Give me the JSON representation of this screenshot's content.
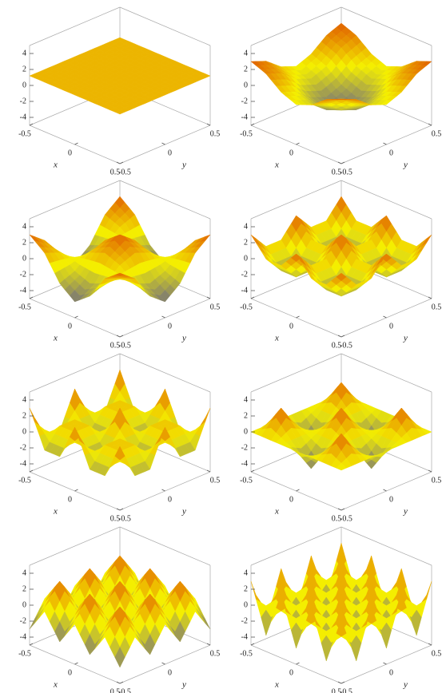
{
  "chart_data": [
    {
      "type": "surface",
      "xlabel": "x",
      "ylabel": "y",
      "x": [
        -0.5,
        -0.3333,
        -0.1667,
        0,
        0.1667,
        0.3333,
        0.5
      ],
      "y": [
        -0.5,
        -0.3333,
        -0.1667,
        0,
        0.1667,
        0.3333,
        0.5
      ],
      "z": [
        [
          1.2,
          1.2,
          1.2,
          1.2,
          1.2,
          1.2,
          1.2
        ],
        [
          1.2,
          1.2,
          1.2,
          1.2,
          1.2,
          1.2,
          1.2
        ],
        [
          1.2,
          1.2,
          1.2,
          1.2,
          1.2,
          1.2,
          1.2
        ],
        [
          1.2,
          1.2,
          1.2,
          1.2,
          1.2,
          1.2,
          1.2
        ],
        [
          1.2,
          1.2,
          1.2,
          1.2,
          1.2,
          1.2,
          1.2
        ],
        [
          1.2,
          1.2,
          1.2,
          1.2,
          1.2,
          1.2,
          1.2
        ],
        [
          1.2,
          1.2,
          1.2,
          1.2,
          1.2,
          1.2,
          1.2
        ]
      ],
      "xlim": [
        -0.5,
        0.5
      ],
      "ylim": [
        -0.5,
        0.5
      ],
      "zlim": [
        -5,
        5
      ],
      "xticks": [
        -0.5,
        0,
        0.5
      ],
      "yticks": [
        -0.5,
        0,
        0.5
      ],
      "zticks": [
        -4,
        -2,
        0,
        2,
        4
      ],
      "colormap": [
        "#1c1cd0",
        "#f4ee00",
        "#d40000"
      ]
    },
    {
      "type": "surface",
      "xlabel": "x",
      "ylabel": "y",
      "x": [
        -0.5,
        -0.3333,
        -0.1667,
        0,
        0.1667,
        0.3333,
        0.5
      ],
      "y": [
        -0.5,
        -0.3333,
        -0.1667,
        0,
        0.1667,
        0.3333,
        0.5
      ],
      "z": [
        [
          3,
          2.25,
          0.75,
          0,
          0.75,
          2.25,
          3
        ],
        [
          2.25,
          1.5,
          0,
          -0.75,
          0,
          1.5,
          2.25
        ],
        [
          0.75,
          0,
          -1.5,
          -2.25,
          -1.5,
          0,
          0.75
        ],
        [
          0,
          -0.75,
          -2.25,
          -3,
          -2.25,
          -0.75,
          0
        ],
        [
          0.75,
          0,
          -1.5,
          -2.25,
          -1.5,
          0,
          0.75
        ],
        [
          2.25,
          1.5,
          0,
          -0.75,
          0,
          1.5,
          2.25
        ],
        [
          3,
          2.25,
          0.75,
          0,
          0.75,
          2.25,
          3
        ]
      ],
      "xlim": [
        -0.5,
        0.5
      ],
      "ylim": [
        -0.5,
        0.5
      ],
      "zlim": [
        -5,
        5
      ],
      "xticks": [
        -0.5,
        0,
        0.5
      ],
      "yticks": [
        -0.5,
        0,
        0.5
      ],
      "zticks": [
        -4,
        -2,
        0,
        2,
        4
      ],
      "colormap": [
        "#1c1cd0",
        "#f4ee00",
        "#d40000"
      ]
    },
    {
      "type": "surface",
      "xlabel": "x",
      "ylabel": "y",
      "x": [
        -0.5,
        -0.3333,
        -0.1667,
        0,
        0.1667,
        0.3333,
        0.5
      ],
      "y": [
        -0.5,
        -0.3333,
        -0.1667,
        0,
        0.1667,
        0.3333,
        0.5
      ],
      "z": [
        [
          3,
          1.5,
          -1.5,
          -3,
          -1.5,
          1.5,
          3
        ],
        [
          1.5,
          0.75,
          -0.75,
          -1.5,
          -0.75,
          0.75,
          1.5
        ],
        [
          -1.5,
          -0.75,
          0.75,
          1.5,
          0.75,
          -0.75,
          -1.5
        ],
        [
          -3,
          -1.5,
          1.5,
          3,
          1.5,
          -1.5,
          -3
        ],
        [
          -1.5,
          -0.75,
          0.75,
          1.5,
          0.75,
          -0.75,
          -1.5
        ],
        [
          1.5,
          0.75,
          -0.75,
          -1.5,
          -0.75,
          0.75,
          1.5
        ],
        [
          3,
          1.5,
          -1.5,
          -3,
          -1.5,
          1.5,
          3
        ]
      ],
      "xlim": [
        -0.5,
        0.5
      ],
      "ylim": [
        -0.5,
        0.5
      ],
      "zlim": [
        -5,
        5
      ],
      "xticks": [
        -0.5,
        0,
        0.5
      ],
      "yticks": [
        -0.5,
        0,
        0.5
      ],
      "zticks": [
        -4,
        -2,
        0,
        2,
        4
      ],
      "colormap": [
        "#1c1cd0",
        "#f4ee00",
        "#d40000"
      ]
    },
    {
      "type": "surface",
      "xlabel": "x",
      "ylabel": "y",
      "x": [
        -0.5,
        -0.3333,
        -0.1667,
        0,
        0.1667,
        0.3333,
        0.5
      ],
      "y": [
        -0.5,
        -0.3333,
        -0.1667,
        0,
        0.1667,
        0.3333,
        0.5
      ],
      "z": [
        [
          3,
          0.75,
          0.75,
          3,
          0.75,
          0.75,
          3
        ],
        [
          0.75,
          -1.5,
          -1.5,
          0.75,
          -1.5,
          -1.5,
          0.75
        ],
        [
          0.75,
          -1.5,
          -1.5,
          0.75,
          -1.5,
          -1.5,
          0.75
        ],
        [
          3,
          0.75,
          0.75,
          3,
          0.75,
          0.75,
          3
        ],
        [
          0.75,
          -1.5,
          -1.5,
          0.75,
          -1.5,
          -1.5,
          0.75
        ],
        [
          0.75,
          -1.5,
          -1.5,
          0.75,
          -1.5,
          -1.5,
          0.75
        ],
        [
          3,
          0.75,
          0.75,
          3,
          0.75,
          0.75,
          3
        ]
      ],
      "xlim": [
        -0.5,
        0.5
      ],
      "ylim": [
        -0.5,
        0.5
      ],
      "zlim": [
        -5,
        5
      ],
      "xticks": [
        -0.5,
        0,
        0.5
      ],
      "yticks": [
        -0.5,
        0,
        0.5
      ],
      "zticks": [
        -4,
        -2,
        0,
        2,
        4
      ],
      "colormap": [
        "#1c1cd0",
        "#f4ee00",
        "#d40000"
      ]
    },
    {
      "type": "surface",
      "xlabel": "x",
      "ylabel": "y",
      "x": [
        -0.5,
        -0.3333,
        -0.1667,
        0,
        0.1667,
        0.3333,
        0.5
      ],
      "y": [
        -0.5,
        -0.3333,
        -0.1667,
        0,
        0.1667,
        0.3333,
        0.5
      ],
      "z": [
        [
          3,
          -1.5,
          -1.5,
          3,
          -1.5,
          -1.5,
          3
        ],
        [
          -1.5,
          0.75,
          0.75,
          -1.5,
          0.75,
          0.75,
          -1.5
        ],
        [
          -1.5,
          0.75,
          0.75,
          -1.5,
          0.75,
          0.75,
          -1.5
        ],
        [
          3,
          -1.5,
          -1.5,
          3,
          -1.5,
          -1.5,
          3
        ],
        [
          -1.5,
          0.75,
          0.75,
          -1.5,
          0.75,
          0.75,
          -1.5
        ],
        [
          -1.5,
          0.75,
          0.75,
          -1.5,
          0.75,
          0.75,
          -1.5
        ],
        [
          3,
          -1.5,
          -1.5,
          3,
          -1.5,
          -1.5,
          3
        ]
      ],
      "xlim": [
        -0.5,
        0.5
      ],
      "ylim": [
        -0.5,
        0.5
      ],
      "zlim": [
        -5,
        5
      ],
      "xticks": [
        -0.5,
        0,
        0.5
      ],
      "yticks": [
        -0.5,
        0,
        0.5
      ],
      "zticks": [
        -4,
        -2,
        0,
        2,
        4
      ],
      "colormap": [
        "#1c1cd0",
        "#f4ee00",
        "#d40000"
      ]
    },
    {
      "type": "surface",
      "xlabel": "x",
      "ylabel": "y",
      "x": [
        -0.5,
        -0.3333,
        -0.1667,
        0,
        0.1667,
        0.3333,
        0.5
      ],
      "y": [
        -0.5,
        -0.3333,
        -0.1667,
        0,
        0.1667,
        0.3333,
        0.5
      ],
      "z": [
        [
          0,
          0,
          0,
          0,
          0,
          0,
          0
        ],
        [
          0,
          3,
          0,
          -3,
          0,
          3,
          0
        ],
        [
          0,
          0,
          0,
          0,
          0,
          0,
          0
        ],
        [
          0,
          -3,
          0,
          3,
          0,
          -3,
          0
        ],
        [
          0,
          0,
          0,
          0,
          0,
          0,
          0
        ],
        [
          0,
          3,
          0,
          -3,
          0,
          3,
          0
        ],
        [
          0,
          0,
          0,
          0,
          0,
          0,
          0
        ]
      ],
      "xlim": [
        -0.5,
        0.5
      ],
      "ylim": [
        -0.5,
        0.5
      ],
      "zlim": [
        -5,
        5
      ],
      "xticks": [
        -0.5,
        0,
        0.5
      ],
      "yticks": [
        -0.5,
        0,
        0.5
      ],
      "zticks": [
        -4,
        -2,
        0,
        2,
        4
      ],
      "colormap": [
        "#1c1cd0",
        "#f4ee00",
        "#d40000"
      ]
    },
    {
      "type": "surface",
      "xlabel": "x",
      "ylabel": "y",
      "x": [
        -0.5,
        -0.3333,
        -0.1667,
        0,
        0.1667,
        0.3333,
        0.5
      ],
      "y": [
        -0.5,
        -0.3333,
        -0.1667,
        0,
        0.1667,
        0.3333,
        0.5
      ],
      "z": [
        [
          -3,
          0,
          -3,
          0,
          -3,
          0,
          -3
        ],
        [
          0,
          3,
          0,
          3,
          0,
          3,
          0
        ],
        [
          -3,
          0,
          -3,
          0,
          -3,
          0,
          -3
        ],
        [
          0,
          3,
          0,
          3,
          0,
          3,
          0
        ],
        [
          -3,
          0,
          -3,
          0,
          -3,
          0,
          -3
        ],
        [
          0,
          3,
          0,
          3,
          0,
          3,
          0
        ],
        [
          -3,
          0,
          -3,
          0,
          -3,
          0,
          -3
        ]
      ],
      "xlim": [
        -0.5,
        0.5
      ],
      "ylim": [
        -0.5,
        0.5
      ],
      "zlim": [
        -5,
        5
      ],
      "xticks": [
        -0.5,
        0,
        0.5
      ],
      "yticks": [
        -0.5,
        0,
        0.5
      ],
      "zticks": [
        -4,
        -2,
        0,
        2,
        4
      ],
      "colormap": [
        "#1c1cd0",
        "#f4ee00",
        "#d40000"
      ]
    },
    {
      "type": "surface",
      "xlabel": "x",
      "ylabel": "y",
      "x": [
        -0.5,
        -0.3333,
        -0.1667,
        0,
        0.1667,
        0.3333,
        0.5
      ],
      "y": [
        -0.5,
        -0.3333,
        -0.1667,
        0,
        0.1667,
        0.3333,
        0.5
      ],
      "z": [
        [
          3,
          -3,
          3,
          -3,
          3,
          -3,
          3
        ],
        [
          -3,
          3,
          -3,
          3,
          -3,
          3,
          -3
        ],
        [
          3,
          -3,
          3,
          -3,
          3,
          -3,
          3
        ],
        [
          -3,
          3,
          -3,
          3,
          -3,
          3,
          -3
        ],
        [
          3,
          -3,
          3,
          -3,
          3,
          -3,
          3
        ],
        [
          -3,
          3,
          -3,
          3,
          -3,
          3,
          -3
        ],
        [
          3,
          -3,
          3,
          -3,
          3,
          -3,
          3
        ]
      ],
      "xlim": [
        -0.5,
        0.5
      ],
      "ylim": [
        -0.5,
        0.5
      ],
      "zlim": [
        -5,
        5
      ],
      "xticks": [
        -0.5,
        0,
        0.5
      ],
      "yticks": [
        -0.5,
        0,
        0.5
      ],
      "zticks": [
        -4,
        -2,
        0,
        2,
        4
      ],
      "colormap": [
        "#1c1cd0",
        "#f4ee00",
        "#d40000"
      ]
    }
  ]
}
